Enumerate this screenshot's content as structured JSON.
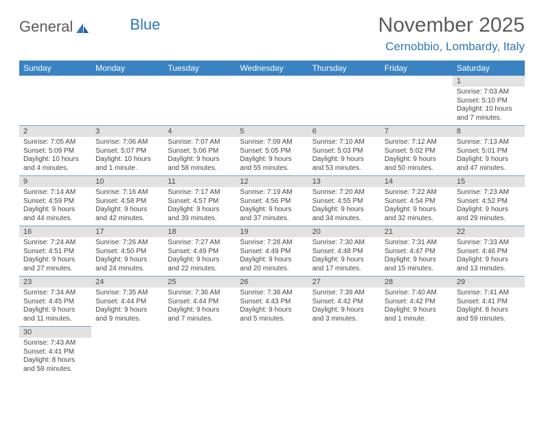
{
  "logo": {
    "text1": "General",
    "text2": "Blue"
  },
  "title": "November 2025",
  "location": "Cernobbio, Lombardy, Italy",
  "colors": {
    "header_bg": "#3a83c3",
    "header_fg": "#ffffff",
    "daynum_bg": "#e2e2e2",
    "border": "#6da2d2",
    "title_color": "#5a5a5a",
    "location_color": "#2d76b9"
  },
  "weekdays": [
    "Sunday",
    "Monday",
    "Tuesday",
    "Wednesday",
    "Thursday",
    "Friday",
    "Saturday"
  ],
  "weeks": [
    [
      null,
      null,
      null,
      null,
      null,
      null,
      {
        "n": "1",
        "sr": "Sunrise: 7:03 AM",
        "ss": "Sunset: 5:10 PM",
        "dl1": "Daylight: 10 hours",
        "dl2": "and 7 minutes."
      }
    ],
    [
      {
        "n": "2",
        "sr": "Sunrise: 7:05 AM",
        "ss": "Sunset: 5:09 PM",
        "dl1": "Daylight: 10 hours",
        "dl2": "and 4 minutes."
      },
      {
        "n": "3",
        "sr": "Sunrise: 7:06 AM",
        "ss": "Sunset: 5:07 PM",
        "dl1": "Daylight: 10 hours",
        "dl2": "and 1 minute."
      },
      {
        "n": "4",
        "sr": "Sunrise: 7:07 AM",
        "ss": "Sunset: 5:06 PM",
        "dl1": "Daylight: 9 hours",
        "dl2": "and 58 minutes."
      },
      {
        "n": "5",
        "sr": "Sunrise: 7:09 AM",
        "ss": "Sunset: 5:05 PM",
        "dl1": "Daylight: 9 hours",
        "dl2": "and 55 minutes."
      },
      {
        "n": "6",
        "sr": "Sunrise: 7:10 AM",
        "ss": "Sunset: 5:03 PM",
        "dl1": "Daylight: 9 hours",
        "dl2": "and 53 minutes."
      },
      {
        "n": "7",
        "sr": "Sunrise: 7:12 AM",
        "ss": "Sunset: 5:02 PM",
        "dl1": "Daylight: 9 hours",
        "dl2": "and 50 minutes."
      },
      {
        "n": "8",
        "sr": "Sunrise: 7:13 AM",
        "ss": "Sunset: 5:01 PM",
        "dl1": "Daylight: 9 hours",
        "dl2": "and 47 minutes."
      }
    ],
    [
      {
        "n": "9",
        "sr": "Sunrise: 7:14 AM",
        "ss": "Sunset: 4:59 PM",
        "dl1": "Daylight: 9 hours",
        "dl2": "and 44 minutes."
      },
      {
        "n": "10",
        "sr": "Sunrise: 7:16 AM",
        "ss": "Sunset: 4:58 PM",
        "dl1": "Daylight: 9 hours",
        "dl2": "and 42 minutes."
      },
      {
        "n": "11",
        "sr": "Sunrise: 7:17 AM",
        "ss": "Sunset: 4:57 PM",
        "dl1": "Daylight: 9 hours",
        "dl2": "and 39 minutes."
      },
      {
        "n": "12",
        "sr": "Sunrise: 7:19 AM",
        "ss": "Sunset: 4:56 PM",
        "dl1": "Daylight: 9 hours",
        "dl2": "and 37 minutes."
      },
      {
        "n": "13",
        "sr": "Sunrise: 7:20 AM",
        "ss": "Sunset: 4:55 PM",
        "dl1": "Daylight: 9 hours",
        "dl2": "and 34 minutes."
      },
      {
        "n": "14",
        "sr": "Sunrise: 7:22 AM",
        "ss": "Sunset: 4:54 PM",
        "dl1": "Daylight: 9 hours",
        "dl2": "and 32 minutes."
      },
      {
        "n": "15",
        "sr": "Sunrise: 7:23 AM",
        "ss": "Sunset: 4:52 PM",
        "dl1": "Daylight: 9 hours",
        "dl2": "and 29 minutes."
      }
    ],
    [
      {
        "n": "16",
        "sr": "Sunrise: 7:24 AM",
        "ss": "Sunset: 4:51 PM",
        "dl1": "Daylight: 9 hours",
        "dl2": "and 27 minutes."
      },
      {
        "n": "17",
        "sr": "Sunrise: 7:26 AM",
        "ss": "Sunset: 4:50 PM",
        "dl1": "Daylight: 9 hours",
        "dl2": "and 24 minutes."
      },
      {
        "n": "18",
        "sr": "Sunrise: 7:27 AM",
        "ss": "Sunset: 4:49 PM",
        "dl1": "Daylight: 9 hours",
        "dl2": "and 22 minutes."
      },
      {
        "n": "19",
        "sr": "Sunrise: 7:28 AM",
        "ss": "Sunset: 4:49 PM",
        "dl1": "Daylight: 9 hours",
        "dl2": "and 20 minutes."
      },
      {
        "n": "20",
        "sr": "Sunrise: 7:30 AM",
        "ss": "Sunset: 4:48 PM",
        "dl1": "Daylight: 9 hours",
        "dl2": "and 17 minutes."
      },
      {
        "n": "21",
        "sr": "Sunrise: 7:31 AM",
        "ss": "Sunset: 4:47 PM",
        "dl1": "Daylight: 9 hours",
        "dl2": "and 15 minutes."
      },
      {
        "n": "22",
        "sr": "Sunrise: 7:33 AM",
        "ss": "Sunset: 4:46 PM",
        "dl1": "Daylight: 9 hours",
        "dl2": "and 13 minutes."
      }
    ],
    [
      {
        "n": "23",
        "sr": "Sunrise: 7:34 AM",
        "ss": "Sunset: 4:45 PM",
        "dl1": "Daylight: 9 hours",
        "dl2": "and 11 minutes."
      },
      {
        "n": "24",
        "sr": "Sunrise: 7:35 AM",
        "ss": "Sunset: 4:44 PM",
        "dl1": "Daylight: 9 hours",
        "dl2": "and 9 minutes."
      },
      {
        "n": "25",
        "sr": "Sunrise: 7:36 AM",
        "ss": "Sunset: 4:44 PM",
        "dl1": "Daylight: 9 hours",
        "dl2": "and 7 minutes."
      },
      {
        "n": "26",
        "sr": "Sunrise: 7:38 AM",
        "ss": "Sunset: 4:43 PM",
        "dl1": "Daylight: 9 hours",
        "dl2": "and 5 minutes."
      },
      {
        "n": "27",
        "sr": "Sunrise: 7:39 AM",
        "ss": "Sunset: 4:42 PM",
        "dl1": "Daylight: 9 hours",
        "dl2": "and 3 minutes."
      },
      {
        "n": "28",
        "sr": "Sunrise: 7:40 AM",
        "ss": "Sunset: 4:42 PM",
        "dl1": "Daylight: 9 hours",
        "dl2": "and 1 minute."
      },
      {
        "n": "29",
        "sr": "Sunrise: 7:41 AM",
        "ss": "Sunset: 4:41 PM",
        "dl1": "Daylight: 8 hours",
        "dl2": "and 59 minutes."
      }
    ],
    [
      {
        "n": "30",
        "sr": "Sunrise: 7:43 AM",
        "ss": "Sunset: 4:41 PM",
        "dl1": "Daylight: 8 hours",
        "dl2": "and 58 minutes."
      },
      null,
      null,
      null,
      null,
      null,
      null
    ]
  ]
}
